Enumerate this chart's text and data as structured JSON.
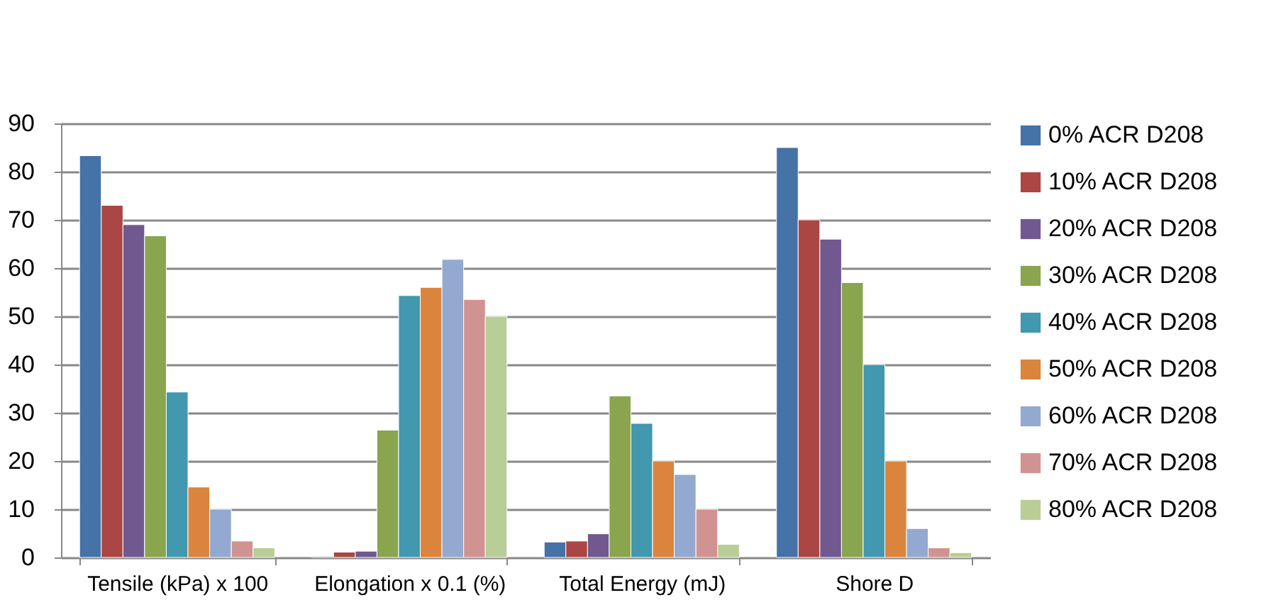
{
  "chart_data": {
    "type": "bar",
    "categories": [
      "Tensile (kPa) x 100",
      "Elongation x 0.1 (%)",
      "Total Energy (mJ)",
      "Shore D"
    ],
    "series": [
      {
        "name": "0% ACR D208",
        "color": "#4572a7",
        "values": [
          83.3,
          0.2,
          3.2,
          85
        ]
      },
      {
        "name": "10% ACR D208",
        "color": "#aa4643",
        "values": [
          73,
          1.1,
          3.4,
          70
        ]
      },
      {
        "name": "20% ACR D208",
        "color": "#71588f",
        "values": [
          69,
          1.3,
          4.9,
          66
        ]
      },
      {
        "name": "30% ACR D208",
        "color": "#89a54e",
        "values": [
          66.7,
          26.4,
          33.5,
          57
        ]
      },
      {
        "name": "40% ACR D208",
        "color": "#4198af",
        "values": [
          34.3,
          54.3,
          27.8,
          40
        ]
      },
      {
        "name": "50% ACR D208",
        "color": "#db843d",
        "values": [
          14.6,
          56,
          20,
          20
        ]
      },
      {
        "name": "60% ACR D208",
        "color": "#93a9cf",
        "values": [
          10,
          61.8,
          17.2,
          6
        ]
      },
      {
        "name": "70% ACR D208",
        "color": "#d19392",
        "values": [
          3.4,
          53.5,
          10,
          2
        ]
      },
      {
        "name": "80% ACR D208",
        "color": "#b9cd96",
        "values": [
          2,
          50,
          2.7,
          1
        ]
      }
    ],
    "ylim": [
      0,
      90
    ],
    "yticks": [
      0,
      10,
      20,
      30,
      40,
      50,
      60,
      70,
      80,
      90
    ],
    "grid": "y",
    "legend": "right"
  }
}
